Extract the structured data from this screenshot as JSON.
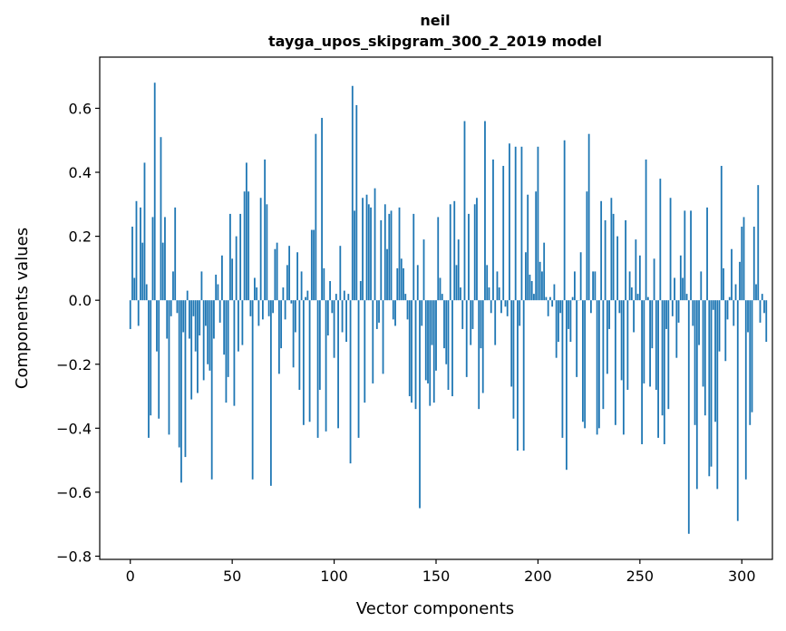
{
  "chart_data": {
    "type": "bar",
    "title": "neil",
    "subtitle": "tayga_upos_skipgram_300_2_2019 model",
    "xlabel": "Vector components",
    "ylabel": "Components values",
    "xlim": [
      -15,
      315
    ],
    "ylim": [
      -0.81,
      0.76
    ],
    "bar_color": "#1f77b4",
    "grid": false,
    "xticks": [
      0,
      50,
      100,
      150,
      200,
      250,
      300
    ],
    "yticks": [
      -0.8,
      -0.6,
      -0.4,
      -0.2,
      0.0,
      0.2,
      0.4,
      0.6
    ],
    "ytick_labels": [
      "−0.8",
      "−0.6",
      "−0.4",
      "−0.2",
      "0.0",
      "0.2",
      "0.4",
      "0.6"
    ],
    "values": [
      -0.09,
      0.23,
      0.07,
      0.31,
      -0.08,
      0.29,
      0.18,
      0.43,
      0.05,
      -0.43,
      -0.36,
      0.26,
      0.68,
      -0.16,
      -0.37,
      0.51,
      0.18,
      0.26,
      -0.12,
      -0.42,
      -0.05,
      0.09,
      0.29,
      -0.04,
      -0.46,
      -0.57,
      -0.1,
      -0.49,
      0.03,
      -0.12,
      -0.31,
      -0.05,
      -0.16,
      -0.29,
      -0.11,
      0.09,
      -0.25,
      -0.08,
      -0.2,
      -0.22,
      -0.56,
      -0.12,
      0.08,
      0.05,
      -0.07,
      0.14,
      -0.17,
      -0.32,
      -0.24,
      0.27,
      0.13,
      -0.33,
      0.2,
      -0.16,
      0.27,
      -0.14,
      0.34,
      0.43,
      0.34,
      -0.05,
      -0.56,
      0.07,
      0.04,
      -0.08,
      0.32,
      -0.06,
      0.44,
      0.3,
      -0.05,
      -0.58,
      -0.04,
      0.16,
      0.18,
      -0.23,
      -0.15,
      0.04,
      -0.06,
      0.11,
      0.17,
      -0.01,
      -0.21,
      -0.1,
      0.15,
      -0.28,
      0.09,
      -0.39,
      0.01,
      0.03,
      -0.38,
      0.22,
      0.22,
      0.52,
      -0.43,
      -0.28,
      0.57,
      0.1,
      -0.41,
      -0.11,
      0.06,
      -0.04,
      -0.18,
      0.02,
      -0.4,
      0.17,
      -0.1,
      0.03,
      -0.13,
      0.02,
      -0.51,
      0.67,
      0.28,
      0.61,
      -0.43,
      0.06,
      0.32,
      -0.32,
      0.33,
      0.3,
      0.29,
      -0.26,
      0.35,
      -0.09,
      -0.07,
      0.25,
      -0.23,
      0.3,
      0.16,
      0.27,
      0.28,
      -0.06,
      -0.08,
      0.1,
      0.29,
      0.13,
      0.1,
      0.02,
      -0.06,
      -0.3,
      -0.32,
      0.27,
      -0.34,
      0.11,
      -0.65,
      -0.08,
      0.19,
      -0.25,
      -0.26,
      -0.33,
      -0.14,
      -0.32,
      -0.22,
      0.26,
      0.07,
      0.02,
      -0.15,
      -0.2,
      -0.28,
      0.3,
      -0.3,
      0.31,
      0.11,
      0.19,
      0.04,
      -0.09,
      0.56,
      -0.24,
      0.27,
      -0.14,
      -0.09,
      0.3,
      0.32,
      -0.34,
      -0.15,
      -0.29,
      0.56,
      0.11,
      0.04,
      -0.04,
      0.44,
      -0.14,
      0.09,
      0.04,
      -0.04,
      0.42,
      -0.02,
      -0.05,
      0.49,
      -0.27,
      -0.37,
      0.48,
      -0.47,
      -0.08,
      0.48,
      -0.47,
      0.15,
      0.33,
      0.08,
      0.06,
      0.02,
      0.34,
      0.48,
      0.12,
      0.09,
      0.18,
      0.01,
      -0.05,
      0.01,
      -0.02,
      0.05,
      -0.18,
      -0.13,
      -0.04,
      -0.43,
      0.5,
      -0.53,
      -0.09,
      -0.13,
      0.01,
      0.09,
      -0.24,
      0.0,
      0.15,
      -0.38,
      -0.4,
      0.34,
      0.52,
      -0.04,
      0.09,
      0.09,
      -0.42,
      -0.4,
      0.31,
      -0.34,
      0.25,
      -0.23,
      -0.09,
      0.32,
      0.27,
      -0.39,
      0.2,
      -0.04,
      -0.25,
      -0.42,
      0.25,
      -0.28,
      0.09,
      0.04,
      -0.1,
      0.19,
      0.02,
      0.14,
      -0.45,
      -0.26,
      0.44,
      0.01,
      -0.27,
      -0.15,
      0.13,
      -0.28,
      -0.43,
      0.38,
      -0.36,
      -0.45,
      -0.09,
      -0.34,
      0.32,
      -0.05,
      0.07,
      -0.18,
      -0.07,
      0.14,
      0.07,
      0.28,
      0.02,
      -0.73,
      0.28,
      -0.08,
      -0.39,
      -0.59,
      -0.14,
      0.09,
      -0.27,
      -0.36,
      0.29,
      -0.55,
      -0.52,
      -0.03,
      -0.38,
      -0.59,
      -0.16,
      0.42,
      0.1,
      -0.19,
      -0.06,
      0.01,
      0.16,
      -0.08,
      0.05,
      -0.69,
      0.12,
      0.23,
      0.26,
      -0.56,
      -0.1,
      -0.39,
      -0.35,
      0.23,
      0.05,
      0.36,
      -0.07,
      0.02,
      -0.04,
      -0.13
    ]
  }
}
